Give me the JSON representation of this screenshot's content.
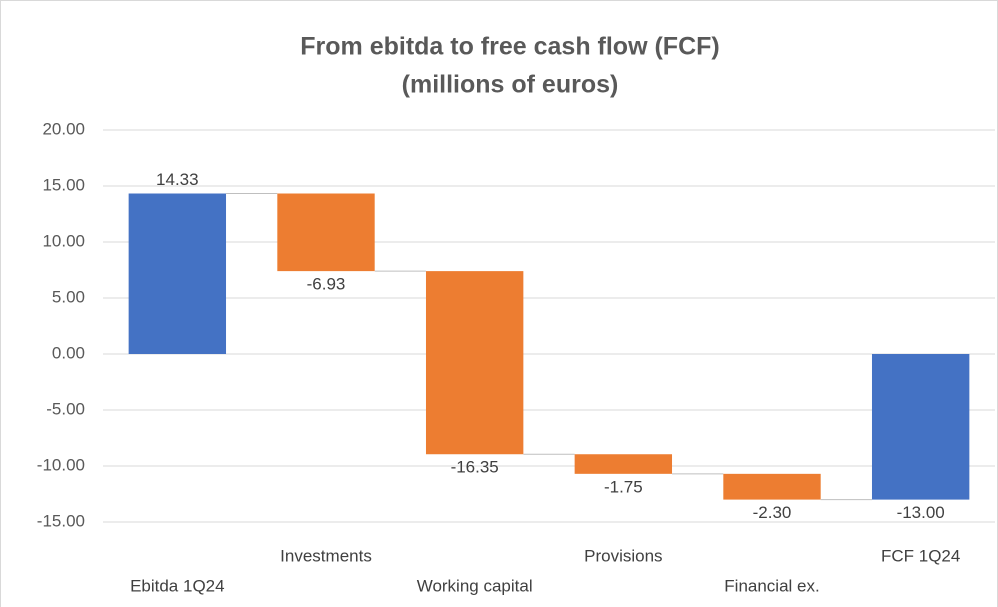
{
  "chart_data": {
    "type": "waterfall",
    "title": "From ebitda to free cash flow (FCF)",
    "subtitle": "(millions of euros)",
    "categories": [
      "Ebitda 1Q24",
      "Investments",
      "Working capital",
      "Provisions",
      "Financial ex.",
      "FCF 1Q24"
    ],
    "values": [
      14.33,
      -6.93,
      -16.35,
      -1.75,
      -2.3,
      -13.0
    ],
    "value_labels": [
      "14.33",
      "-6.93",
      "-16.35",
      "-1.75",
      "-2.30",
      "-13.00"
    ],
    "is_total": [
      true,
      false,
      false,
      false,
      false,
      true
    ],
    "total_color": "#4472c4",
    "decrease_color": "#ed7d31",
    "ylim": [
      -15,
      20
    ],
    "yticks": [
      {
        "value": -15,
        "label": "-15.00"
      },
      {
        "value": -10,
        "label": "-10.00"
      },
      {
        "value": -5,
        "label": "-5.00"
      },
      {
        "value": 0,
        "label": "0.00"
      },
      {
        "value": 5,
        "label": "5.00"
      },
      {
        "value": 10,
        "label": "10.00"
      },
      {
        "value": 15,
        "label": "15.00"
      },
      {
        "value": 20,
        "label": "20.00"
      }
    ],
    "grid": true
  }
}
